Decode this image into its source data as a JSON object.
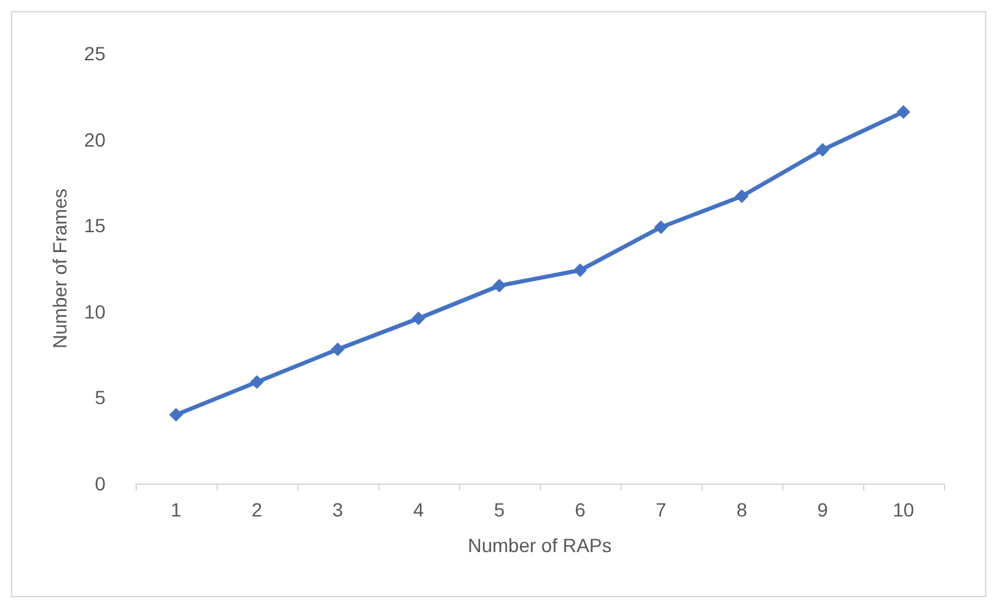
{
  "chart_data": {
    "type": "line",
    "xlabel": "Number of RAPs",
    "ylabel": "Number of Frames",
    "categories": [
      "1",
      "2",
      "3",
      "4",
      "5",
      "6",
      "7",
      "8",
      "9",
      "10"
    ],
    "series": [
      {
        "color": "#4472c4",
        "values": [
          4.0,
          5.9,
          7.8,
          9.6,
          11.5,
          12.4,
          14.9,
          16.7,
          19.4,
          21.6
        ]
      }
    ],
    "ylim": [
      0,
      25
    ],
    "yticks": [
      0,
      5,
      10,
      15,
      20,
      25
    ],
    "grid": false,
    "marker": "diamond",
    "line_style": "solid"
  }
}
